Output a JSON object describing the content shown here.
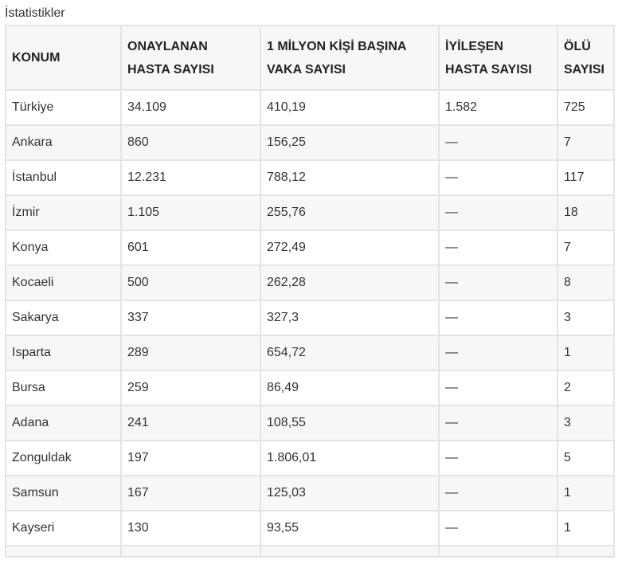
{
  "caption": "İstatistikler",
  "table": {
    "headers": {
      "location": "KONUM",
      "confirmed_line1": "ONAYLANAN",
      "confirmed_line2": "HASTA SAYISI",
      "per_million_line1": "1 MİLYON KİŞİ BAŞINA",
      "per_million_line2": "VAKA SAYISI",
      "recovered_line1": "İYİLEŞEN",
      "recovered_line2": "HASTA SAYISI",
      "deaths_line1": "ÖLÜ",
      "deaths_line2": "SAYISI"
    },
    "rows": [
      {
        "location": "Türkiye",
        "confirmed": "34.109",
        "per_million": "410,19",
        "recovered": "1.582",
        "deaths": "725"
      },
      {
        "location": "Ankara",
        "confirmed": "860",
        "per_million": "156,25",
        "recovered": "—",
        "deaths": "7"
      },
      {
        "location": "İstanbul",
        "confirmed": "12.231",
        "per_million": "788,12",
        "recovered": "—",
        "deaths": "117"
      },
      {
        "location": "İzmir",
        "confirmed": "1.105",
        "per_million": "255,76",
        "recovered": "—",
        "deaths": "18"
      },
      {
        "location": "Konya",
        "confirmed": "601",
        "per_million": "272,49",
        "recovered": "—",
        "deaths": "7"
      },
      {
        "location": "Kocaeli",
        "confirmed": "500",
        "per_million": "262,28",
        "recovered": "—",
        "deaths": "8"
      },
      {
        "location": "Sakarya",
        "confirmed": "337",
        "per_million": "327,3",
        "recovered": "—",
        "deaths": "3"
      },
      {
        "location": "Isparta",
        "confirmed": "289",
        "per_million": "654,72",
        "recovered": "—",
        "deaths": "1"
      },
      {
        "location": "Bursa",
        "confirmed": "259",
        "per_million": "86,49",
        "recovered": "—",
        "deaths": "2"
      },
      {
        "location": "Adana",
        "confirmed": "241",
        "per_million": "108,55",
        "recovered": "—",
        "deaths": "3"
      },
      {
        "location": "Zonguldak",
        "confirmed": "197",
        "per_million": "1.806,01",
        "recovered": "—",
        "deaths": "5"
      },
      {
        "location": "Samsun",
        "confirmed": "167",
        "per_million": "125,03",
        "recovered": "—",
        "deaths": "1"
      },
      {
        "location": "Kayseri",
        "confirmed": "130",
        "per_million": "93,55",
        "recovered": "—",
        "deaths": "1"
      }
    ]
  },
  "colors": {
    "header_bg": "#f7f7f7",
    "stripe_bg": "#f7f7f7",
    "border": "#e4e4e4",
    "text": "#333333"
  }
}
